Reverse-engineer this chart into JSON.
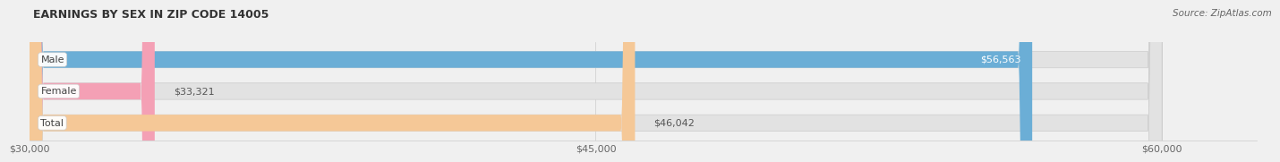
{
  "title": "EARNINGS BY SEX IN ZIP CODE 14005",
  "source": "Source: ZipAtlas.com",
  "categories": [
    "Male",
    "Female",
    "Total"
  ],
  "values": [
    56563,
    33321,
    46042
  ],
  "bar_colors": [
    "#6baed6",
    "#f4a0b5",
    "#f5c897"
  ],
  "bar_labels": [
    "$56,563",
    "$33,321",
    "$46,042"
  ],
  "label_text_colors": [
    "white",
    "#555555",
    "#555555"
  ],
  "label_inside": [
    true,
    false,
    false
  ],
  "xmin": 30000,
  "xmax": 60000,
  "xticks": [
    30000,
    45000,
    60000
  ],
  "xtick_labels": [
    "$30,000",
    "$45,000",
    "$60,000"
  ],
  "background_color": "#f0f0f0",
  "bar_background_color": "#e2e2e2",
  "title_fontsize": 9,
  "source_fontsize": 7.5,
  "label_fontsize": 8,
  "tick_fontsize": 8,
  "bar_height": 0.52,
  "bar_positions": [
    2,
    1,
    0
  ]
}
